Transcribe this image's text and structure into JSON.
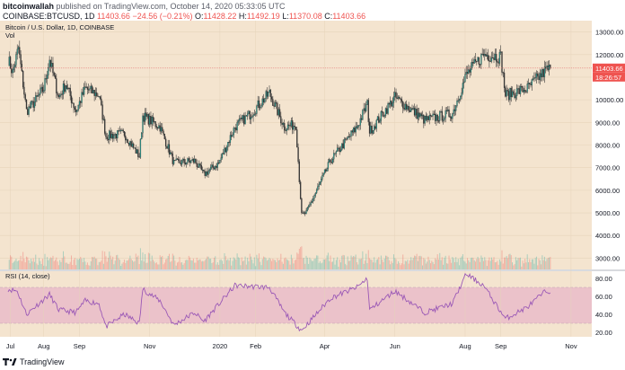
{
  "header": {
    "author": "bitcoinwallah",
    "published_text": "published on TradingView.com, October 14, 2020 05:33:05 UTC",
    "symbol": "COINBASE:BTCUSD, 1D",
    "last": "11403.66",
    "change": "−24.56 (−0.21%)",
    "o_label": "O:",
    "o": "11428.22",
    "h_label": "H:",
    "h": "11492.19",
    "l_label": "L:",
    "l": "11370.08",
    "c_label": "C:",
    "c": "11403.66"
  },
  "legend": {
    "title": "Bitcoin / U.S. Dollar, 1D, COINBASE",
    "vol": "Vol"
  },
  "rsi_label": "RSI (14, close)",
  "price_tag": "11403.66",
  "countdown_tag": "18:26:57",
  "footer": {
    "brand": "TradingView"
  },
  "colors": {
    "background": "#f4e4cf",
    "up": "#26a69a",
    "down": "#ef5350",
    "rsi_line": "#9b59b6",
    "rsi_band": "#e8b7c8",
    "price_line": "#e57373"
  },
  "chart_data": [
    {
      "type": "candlestick",
      "title": "Bitcoin / U.S. Dollar, 1D, COINBASE",
      "xlabels": [
        "Jul",
        "Aug",
        "Sep",
        "Nov",
        "2020",
        "Feb",
        "Apr",
        "Jun",
        "Aug",
        "Sep",
        "Nov"
      ],
      "yticks": [
        3000,
        4000,
        5000,
        6000,
        7000,
        8000,
        9000,
        10000,
        11000,
        12000,
        13000
      ],
      "ylim": [
        2500,
        13500
      ],
      "series": [
        {
          "name": "BTCUSD",
          "close_path_points": [
            [
              "2019-07-01",
              11800
            ],
            [
              "2019-07-05",
              11200
            ],
            [
              "2019-07-10",
              12300
            ],
            [
              "2019-07-17",
              9500
            ],
            [
              "2019-07-24",
              9900
            ],
            [
              "2019-08-01",
              10500
            ],
            [
              "2019-08-06",
              11800
            ],
            [
              "2019-08-14",
              10100
            ],
            [
              "2019-08-20",
              10700
            ],
            [
              "2019-08-29",
              9500
            ],
            [
              "2019-09-06",
              10500
            ],
            [
              "2019-09-18",
              10200
            ],
            [
              "2019-09-24",
              8400
            ],
            [
              "2019-10-10",
              8500
            ],
            [
              "2019-10-23",
              7500
            ],
            [
              "2019-10-26",
              9300
            ],
            [
              "2019-11-10",
              8800
            ],
            [
              "2019-11-22",
              7200
            ],
            [
              "2019-12-10",
              7300
            ],
            [
              "2019-12-18",
              6700
            ],
            [
              "2019-12-31",
              7200
            ],
            [
              "2020-01-14",
              8800
            ],
            [
              "2020-01-28",
              9400
            ],
            [
              "2020-02-13",
              10300
            ],
            [
              "2020-02-26",
              8800
            ],
            [
              "2020-03-07",
              8900
            ],
            [
              "2020-03-12",
              4900
            ],
            [
              "2020-03-16",
              5000
            ],
            [
              "2020-04-06",
              7300
            ],
            [
              "2020-04-29",
              8800
            ],
            [
              "2020-05-08",
              9800
            ],
            [
              "2020-05-10",
              8600
            ],
            [
              "2020-06-01",
              10100
            ],
            [
              "2020-06-27",
              9100
            ],
            [
              "2020-07-21",
              9400
            ],
            [
              "2020-08-02",
              11100
            ],
            [
              "2020-08-17",
              12000
            ],
            [
              "2020-09-01",
              11900
            ],
            [
              "2020-09-05",
              10200
            ],
            [
              "2020-09-24",
              10500
            ],
            [
              "2020-10-10",
              11300
            ],
            [
              "2020-10-14",
              11403.66
            ]
          ],
          "last_close": 11403.66
        }
      ]
    },
    {
      "type": "line",
      "title": "RSI (14, close)",
      "yticks": [
        20,
        40,
        60,
        80
      ],
      "ylim": [
        15,
        88
      ],
      "band": [
        30,
        70
      ],
      "series": [
        {
          "name": "RSI",
          "points": [
            [
              "2019-07-01",
              68
            ],
            [
              "2019-07-09",
              66
            ],
            [
              "2019-07-17",
              40
            ],
            [
              "2019-07-24",
              48
            ],
            [
              "2019-08-06",
              62
            ],
            [
              "2019-08-14",
              45
            ],
            [
              "2019-08-29",
              42
            ],
            [
              "2019-09-06",
              55
            ],
            [
              "2019-09-18",
              52
            ],
            [
              "2019-09-24",
              26
            ],
            [
              "2019-10-10",
              40
            ],
            [
              "2019-10-23",
              30
            ],
            [
              "2019-10-26",
              68
            ],
            [
              "2019-11-10",
              55
            ],
            [
              "2019-11-22",
              28
            ],
            [
              "2019-12-10",
              42
            ],
            [
              "2019-12-18",
              32
            ],
            [
              "2020-01-14",
              72
            ],
            [
              "2020-02-13",
              70
            ],
            [
              "2020-02-26",
              42
            ],
            [
              "2020-03-12",
              22
            ],
            [
              "2020-04-06",
              58
            ],
            [
              "2020-04-29",
              70
            ],
            [
              "2020-05-08",
              80
            ],
            [
              "2020-05-10",
              45
            ],
            [
              "2020-06-01",
              66
            ],
            [
              "2020-06-27",
              42
            ],
            [
              "2020-07-21",
              52
            ],
            [
              "2020-08-02",
              85
            ],
            [
              "2020-08-17",
              72
            ],
            [
              "2020-09-05",
              35
            ],
            [
              "2020-09-24",
              48
            ],
            [
              "2020-10-10",
              66
            ],
            [
              "2020-10-14",
              64
            ]
          ]
        }
      ]
    }
  ]
}
